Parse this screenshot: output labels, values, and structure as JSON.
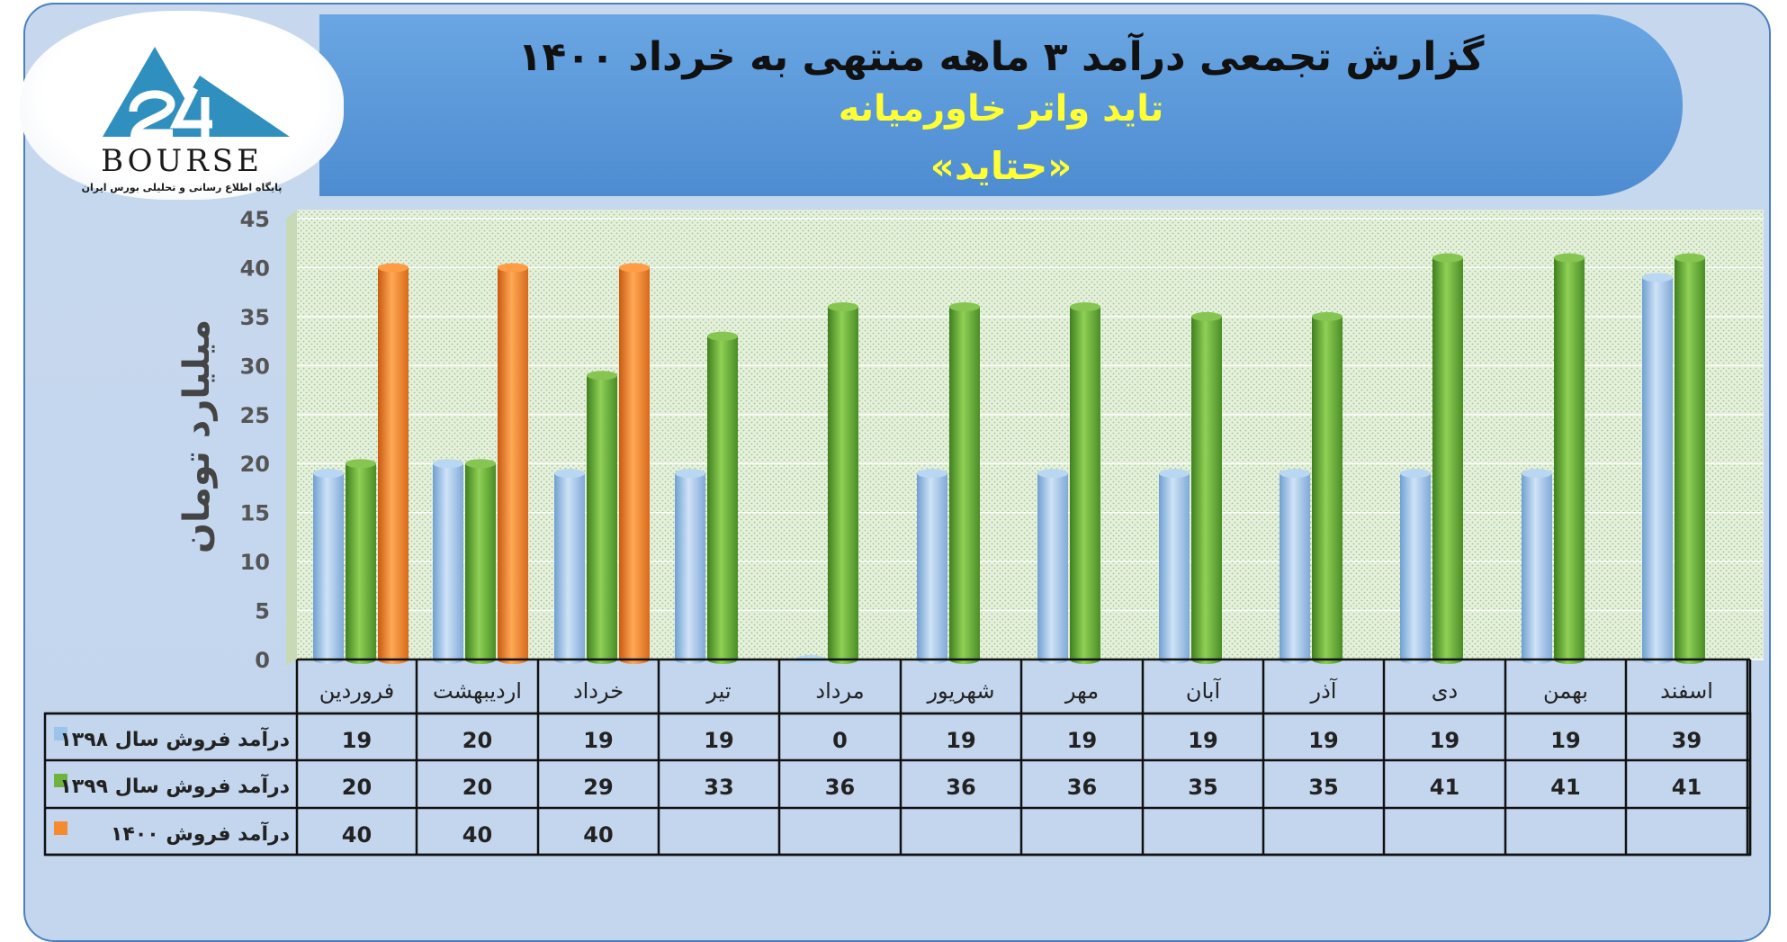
{
  "header": {
    "title": "گزارش تجمعی درآمد ۳ ماهه منتهی به خرداد ۱۴۰۰",
    "company": "تاید واتر خاورمیانه",
    "symbol": "«حتاید»"
  },
  "logo": {
    "brand": "BOURSE",
    "tagline": "پایگاه اطلاع رسانی و تحلیلی بورس ایران"
  },
  "colors": {
    "series_1398": "#9cc3ea",
    "series_1399": "#6fb23f",
    "series_1400": "#f58a2e",
    "plot_bg": "#e4efd9",
    "grid": "#ffffff"
  },
  "chart_data": {
    "type": "bar",
    "ylabel": "میلیارد تومان",
    "ylim": [
      0,
      45
    ],
    "yticks": [
      0,
      5,
      10,
      15,
      20,
      25,
      30,
      35,
      40,
      45
    ],
    "categories": [
      "فروردین",
      "اردیبهشت",
      "خرداد",
      "تیر",
      "مرداد",
      "شهریور",
      "مهر",
      "آبان",
      "آذر",
      "دی",
      "بهمن",
      "اسفند"
    ],
    "series": [
      {
        "name": "درآمد فروش سال ۱۳۹۸",
        "values": [
          19,
          20,
          19,
          19,
          0,
          19,
          19,
          19,
          19,
          19,
          19,
          39
        ]
      },
      {
        "name": "درآمد فروش سال ۱۳۹۹",
        "values": [
          20,
          20,
          29,
          33,
          36,
          36,
          36,
          35,
          35,
          41,
          41,
          41
        ]
      },
      {
        "name": "درآمد فروش ۱۴۰۰",
        "values": [
          40,
          40,
          40,
          null,
          null,
          null,
          null,
          null,
          null,
          null,
          null,
          null
        ]
      }
    ],
    "legend": "bottom-table"
  }
}
